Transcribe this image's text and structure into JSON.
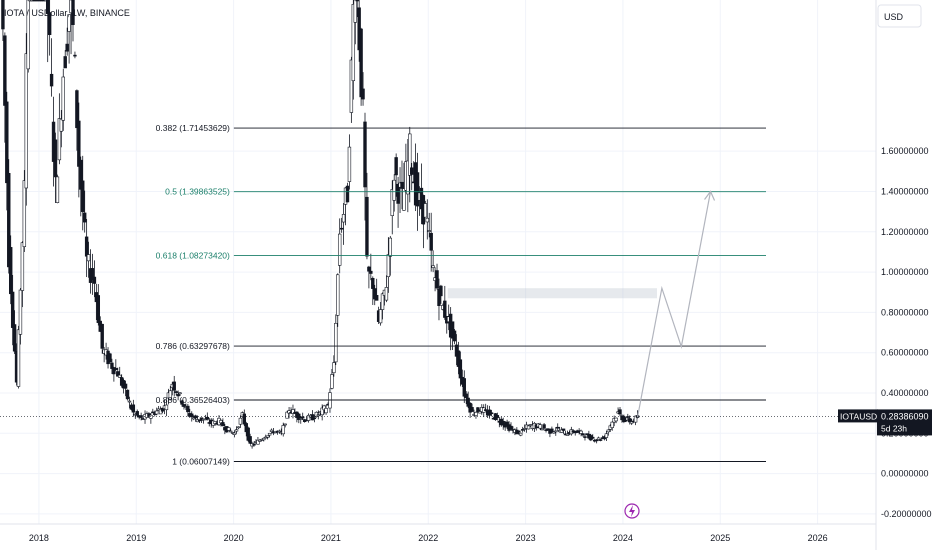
{
  "header": {
    "symbol_title": "IOTA / USDollar, 1W, BINANCE"
  },
  "currency_button": {
    "label": "USD"
  },
  "price_tag": {
    "symbol": "IOTAUSD",
    "price": "0.28386090",
    "countdown": "5d 23h"
  },
  "colors": {
    "candle": "#131722",
    "grid": "#f0f3fa",
    "fib_line": "#131722",
    "fib_highlight": "#1b7f6a",
    "projection": "#b2b5be",
    "rect": "#b8c0cc",
    "event_icon": "#9c27b0"
  },
  "event_icon": {
    "name": "lightning-event-icon"
  },
  "chart_data": {
    "type": "candlestick",
    "title": "IOTA / USDollar, 1W, BINANCE",
    "ylim": [
      -0.25,
      2.35
    ],
    "xlim": [
      2017.6,
      2026.6
    ],
    "y_ticks": [
      "1.60000000",
      "1.40000000",
      "1.20000000",
      "1.00000000",
      "0.80000000",
      "0.60000000",
      "0.40000000",
      "0.20000000",
      "0.00000000",
      "-0.20000000"
    ],
    "y_tick_values": [
      1.6,
      1.4,
      1.2,
      1.0,
      0.8,
      0.6,
      0.4,
      0.2,
      0.0,
      -0.2
    ],
    "x_ticks": [
      "2018",
      "2019",
      "2020",
      "2021",
      "2022",
      "2023",
      "2024",
      "2025",
      "2026"
    ],
    "x_tick_values": [
      2018,
      2019,
      2020,
      2021,
      2022,
      2023,
      2024,
      2025,
      2026
    ],
    "last_price": 0.2838609,
    "fib_levels": [
      {
        "label": "0.382 (1.71453629)",
        "value": 1.71453629,
        "highlight": false
      },
      {
        "label": "0.5 (1.39863525)",
        "value": 1.39863525,
        "highlight": true
      },
      {
        "label": "0.618 (1.08273420)",
        "value": 1.0827342,
        "highlight": true
      },
      {
        "label": "0.786 (0.63297678)",
        "value": 0.63297678,
        "highlight": false
      },
      {
        "label": "0.886 (0.36526403)",
        "value": 0.36526403,
        "highlight": false
      },
      {
        "label": "1 (0.06007149)",
        "value": 0.06007149,
        "highlight": false
      }
    ],
    "fib_range": [
      2019.9,
      2026.1
    ],
    "projection_path": [
      [
        2024.15,
        0.28
      ],
      [
        2024.4,
        0.92
      ],
      [
        2024.6,
        0.63
      ],
      [
        2024.9,
        1.4
      ]
    ],
    "resistance_zone": {
      "x": [
        2022.2,
        2024.35
      ],
      "y": [
        0.87,
        0.92
      ]
    },
    "price_path": [
      [
        2017.62,
        2.55
      ],
      [
        2017.7,
        1.1
      ],
      [
        2017.78,
        0.45
      ],
      [
        2017.86,
        1.4
      ],
      [
        2017.94,
        4.2
      ],
      [
        2018.02,
        3.2
      ],
      [
        2018.1,
        2.3
      ],
      [
        2018.18,
        1.4
      ],
      [
        2018.26,
        2.0
      ],
      [
        2018.34,
        2.4
      ],
      [
        2018.42,
        1.55
      ],
      [
        2018.5,
        1.05
      ],
      [
        2018.58,
        0.95
      ],
      [
        2018.66,
        0.62
      ],
      [
        2018.74,
        0.55
      ],
      [
        2018.82,
        0.5
      ],
      [
        2018.9,
        0.4
      ],
      [
        2018.98,
        0.3
      ],
      [
        2019.06,
        0.27
      ],
      [
        2019.14,
        0.29
      ],
      [
        2019.22,
        0.31
      ],
      [
        2019.3,
        0.33
      ],
      [
        2019.38,
        0.45
      ],
      [
        2019.46,
        0.38
      ],
      [
        2019.54,
        0.3
      ],
      [
        2019.62,
        0.27
      ],
      [
        2019.7,
        0.27
      ],
      [
        2019.78,
        0.25
      ],
      [
        2019.86,
        0.26
      ],
      [
        2019.94,
        0.22
      ],
      [
        2020.02,
        0.2
      ],
      [
        2020.1,
        0.29
      ],
      [
        2020.18,
        0.14
      ],
      [
        2020.26,
        0.16
      ],
      [
        2020.34,
        0.19
      ],
      [
        2020.42,
        0.21
      ],
      [
        2020.5,
        0.2
      ],
      [
        2020.58,
        0.32
      ],
      [
        2020.66,
        0.29
      ],
      [
        2020.74,
        0.27
      ],
      [
        2020.82,
        0.28
      ],
      [
        2020.9,
        0.3
      ],
      [
        2020.98,
        0.34
      ],
      [
        2021.04,
        0.55
      ],
      [
        2021.1,
        1.2
      ],
      [
        2021.18,
        1.4
      ],
      [
        2021.26,
        2.6
      ],
      [
        2021.34,
        1.75
      ],
      [
        2021.38,
        1.0
      ],
      [
        2021.44,
        0.95
      ],
      [
        2021.5,
        0.75
      ],
      [
        2021.58,
        0.95
      ],
      [
        2021.66,
        1.5
      ],
      [
        2021.74,
        1.35
      ],
      [
        2021.82,
        1.6
      ],
      [
        2021.9,
        1.35
      ],
      [
        2021.98,
        1.3
      ],
      [
        2022.06,
        1.0
      ],
      [
        2022.14,
        0.85
      ],
      [
        2022.22,
        0.75
      ],
      [
        2022.3,
        0.6
      ],
      [
        2022.38,
        0.4
      ],
      [
        2022.46,
        0.3
      ],
      [
        2022.54,
        0.32
      ],
      [
        2022.62,
        0.3
      ],
      [
        2022.7,
        0.28
      ],
      [
        2022.78,
        0.25
      ],
      [
        2022.86,
        0.22
      ],
      [
        2022.94,
        0.2
      ],
      [
        2023.02,
        0.23
      ],
      [
        2023.1,
        0.24
      ],
      [
        2023.18,
        0.23
      ],
      [
        2023.26,
        0.21
      ],
      [
        2023.34,
        0.22
      ],
      [
        2023.42,
        0.2
      ],
      [
        2023.5,
        0.21
      ],
      [
        2023.58,
        0.2
      ],
      [
        2023.66,
        0.18
      ],
      [
        2023.74,
        0.17
      ],
      [
        2023.82,
        0.18
      ],
      [
        2023.9,
        0.26
      ],
      [
        2023.96,
        0.3
      ],
      [
        2024.02,
        0.27
      ],
      [
        2024.1,
        0.26
      ],
      [
        2024.16,
        0.28
      ]
    ]
  }
}
